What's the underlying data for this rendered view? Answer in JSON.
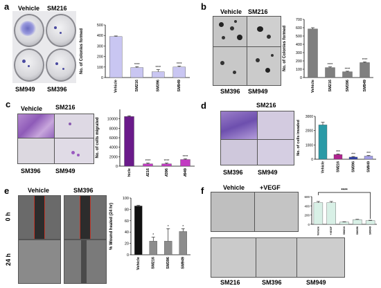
{
  "panels": {
    "a": {
      "letter": "a",
      "labels": [
        "Vehicle",
        "SM216",
        "SM949",
        "SM396"
      ]
    },
    "b": {
      "letter": "b",
      "labels": [
        "Vehicle",
        "SM216",
        "SM396",
        "SM949"
      ]
    },
    "c": {
      "letter": "c",
      "labels": [
        "Vehicle",
        "SM216",
        "SM396",
        "SM949"
      ]
    },
    "d": {
      "letter": "d",
      "labels": [
        "SM216",
        "SM396",
        "SM949"
      ]
    },
    "e": {
      "letter": "e",
      "labels": [
        "Vehicle",
        "SM396"
      ],
      "row_labels": [
        "0 h",
        "24 h"
      ]
    },
    "f": {
      "letter": "f",
      "labels": [
        "Vehicle",
        "+VEGF",
        "SM216",
        "SM396",
        "SM949"
      ]
    }
  },
  "chart_data": [
    {
      "id": "a",
      "type": "bar",
      "categories": [
        "Vehicle",
        "SM216",
        "SM396",
        "SM949"
      ],
      "values": [
        390,
        95,
        55,
        100
      ],
      "errors": [
        5,
        8,
        20,
        8
      ],
      "ylim": [
        0,
        500
      ],
      "yticks": [
        0,
        100,
        200,
        300,
        400,
        500
      ],
      "ylabel": "No. of Colonies formed",
      "colors": [
        "#c9c6f2",
        "#c9c6f2",
        "#c9c6f2",
        "#c9c6f2"
      ],
      "sig": [
        "",
        "****",
        "****",
        "****"
      ]
    },
    {
      "id": "b",
      "type": "bar",
      "categories": [
        "Vehicle",
        "SM216",
        "SM396",
        "SM949"
      ],
      "values": [
        585,
        120,
        70,
        180
      ],
      "errors": [
        15,
        8,
        6,
        8
      ],
      "ylim": [
        0,
        700
      ],
      "yticks": [
        0,
        100,
        200,
        300,
        400,
        500,
        600,
        700
      ],
      "ylabel": "No. of Colonies formed",
      "colors": [
        "#7f7f7f",
        "#7f7f7f",
        "#7f7f7f",
        "#7f7f7f"
      ],
      "sig": [
        "",
        "****",
        "****",
        "****"
      ]
    },
    {
      "id": "c",
      "type": "bar",
      "categories": [
        "Vehicle",
        "SM216",
        "SM396",
        "SM949"
      ],
      "values": [
        10500,
        500,
        500,
        1400
      ],
      "errors": [
        150,
        150,
        150,
        150
      ],
      "ylim": [
        0,
        12000
      ],
      "yticks": [
        0,
        2000,
        4000,
        6000,
        8000,
        10000
      ],
      "ylabel": "No. of cells migrated",
      "colors": [
        "#6a1a8a",
        "#c23bc2",
        "#c23bc2",
        "#c23bc2"
      ],
      "sig": [
        "",
        "****",
        "****",
        "****"
      ]
    },
    {
      "id": "d",
      "type": "bar",
      "categories": [
        "Vehicle",
        "SM216",
        "SM396",
        "SM949"
      ],
      "values": [
        2400,
        330,
        150,
        220
      ],
      "errors": [
        180,
        40,
        40,
        40
      ],
      "ylim": [
        0,
        3000
      ],
      "yticks": [
        0,
        1000,
        2000,
        3000
      ],
      "ylabel": "No. of cells invaded",
      "colors": [
        "#2a9aa6",
        "#b0238f",
        "#2d3fa8",
        "#a4a0e8"
      ],
      "sig": [
        "",
        "***",
        "***",
        "***"
      ]
    },
    {
      "id": "e",
      "type": "bar",
      "categories": [
        "Vehicle",
        "SM216",
        "SM396",
        "SM949"
      ],
      "values": [
        86,
        24,
        24,
        41
      ],
      "errors": [
        1,
        7,
        22,
        5
      ],
      "ylim": [
        0,
        100
      ],
      "yticks": [
        0,
        20,
        40,
        60,
        80,
        100
      ],
      "ylabel": "% Wound healed (24 hr)",
      "colors": [
        "#111111",
        "#8c8c8c",
        "#8c8c8c",
        "#8c8c8c"
      ],
      "sig": [
        "",
        "*",
        "*",
        "*"
      ]
    },
    {
      "id": "f",
      "type": "bar",
      "categories": [
        "Vehicle",
        "+VEGF",
        "SM216",
        "SM396",
        "SM949"
      ],
      "values": [
        470,
        470,
        50,
        100,
        80
      ],
      "errors": [
        25,
        25,
        5,
        8,
        8
      ],
      "ylim": [
        0,
        600
      ],
      "yticks": [
        0,
        200,
        400,
        600
      ],
      "ylabel": "",
      "colors": [
        "#d8f0e6",
        "#d8f0e6",
        "#d8f0e6",
        "#d8f0e6",
        "#d8f0e6"
      ],
      "sig": [
        "",
        "",
        "",
        "",
        ""
      ],
      "bracket": "****"
    }
  ]
}
